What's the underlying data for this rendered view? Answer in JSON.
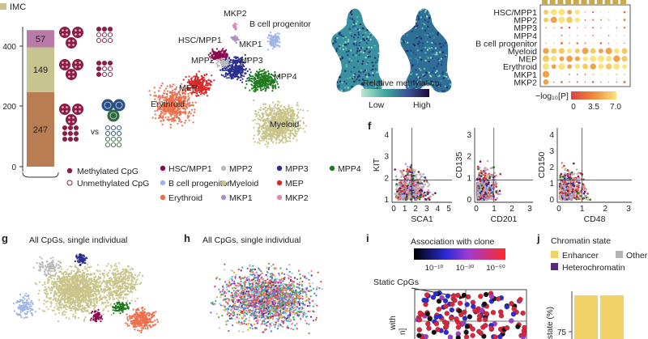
{
  "colors": {
    "hsc": "#8b0a50",
    "mpp2": "#b9b9b9",
    "mpp3": "#2a2f8f",
    "mpp4": "#1d7a1d",
    "bcell": "#9fb4e6",
    "myeloid": "#c8c48a",
    "mep": "#d62b2b",
    "erythroid": "#ef6e4a",
    "mkp1": "#b08ec8",
    "mkp2": "#d98cb4",
    "stack_top": "#b97aa7",
    "stack_mid": "#c6c491",
    "stack_bot": "#b87d52",
    "methylated": "#8b1d47",
    "blue_cluster": "#2a4f86",
    "green_cluster": "#2f6b3a",
    "static_red": "#e0233a",
    "chromatin_enhancer": "#f2d266",
    "chromatin_other": "#b3b3b3",
    "chromatin_hetero": "#5a2a82"
  },
  "panel_a": {
    "title": "IMC",
    "ticks": [
      "0",
      "200",
      "400"
    ],
    "stack_values": [
      247,
      149,
      57
    ],
    "stack_labels": [
      "247",
      "149",
      "57"
    ],
    "vs": "vs",
    "legend_methylated": "Methylated CpG",
    "legend_unmethylated": "Unmethylated CpG"
  },
  "panel_umap": {
    "labels": {
      "mkp2": "MKP2",
      "bcell": "B cell progenitor",
      "hsc": "HSC/MPP1",
      "mkp1": "MKP1",
      "mpp2": "MPP2",
      "mpp3": "MPP3",
      "mep": "MEP",
      "mpp4": "MPP4",
      "erythroid": "Erythroid",
      "myeloid": "Myeloid"
    },
    "legend": [
      {
        "label": "HSC/MPP1",
        "color": "#8b0a50"
      },
      {
        "label": "MPP2",
        "color": "#b9b9b9"
      },
      {
        "label": "MPP3",
        "color": "#2a2f8f"
      },
      {
        "label": "MPP4",
        "color": "#1d7a1d"
      },
      {
        "label": "B cell progenitor",
        "color": "#9fb4e6"
      },
      {
        "label": "Myeloid",
        "color": "#c8c48a"
      },
      {
        "label": "MEP",
        "color": "#d62b2b"
      },
      {
        "label": "Erythroid",
        "color": "#ef6e4a"
      },
      {
        "label": "MKP1",
        "color": "#b08ec8"
      },
      {
        "label": "MKP2",
        "color": "#d98cb4"
      }
    ]
  },
  "panel_meth": {
    "colorbar_title": "Relative methylation",
    "low": "Low",
    "high": "High"
  },
  "panel_dot": {
    "rows": [
      "HSC/MPP1",
      "MPP2",
      "MPP3",
      "MPP4",
      "B cell progenitor",
      "Myeloid",
      "MEP",
      "Erythroid",
      "MKP1",
      "MKP2"
    ],
    "colorbar_title": "−log₁₀[P]",
    "ticks": [
      "0",
      "3.5",
      "7.0"
    ]
  },
  "panel_f": {
    "letter": "f",
    "plots": [
      {
        "ylabel": "KIT",
        "xlabel": "SCA1",
        "xticks": [
          "0",
          "1",
          "2",
          "3",
          "4",
          "5"
        ],
        "yticks": [
          "1",
          "2",
          "3",
          "4"
        ]
      },
      {
        "ylabel": "CD135",
        "xlabel": "CD201",
        "xticks": [
          "0",
          "1",
          "2",
          "3"
        ],
        "yticks": [
          "0",
          "1",
          "2",
          "3"
        ]
      },
      {
        "ylabel": "CD150",
        "xlabel": "CD48",
        "xticks": [
          "0",
          "1",
          "2",
          "3"
        ],
        "yticks": [
          "0",
          "1",
          "2",
          "3",
          "4"
        ]
      }
    ]
  },
  "panel_g": {
    "letter": "g",
    "title": "All CpGs, single individual"
  },
  "panel_h": {
    "letter": "h",
    "title": "All CpGs, single individual"
  },
  "panel_i": {
    "letter": "i",
    "colorbar_title": "Association with clone",
    "ticks": [
      "10⁻¹⁰",
      "10⁻³⁰",
      "10⁻⁵⁰"
    ],
    "static_label": "Static CpGs",
    "ylabel_fragment": "with",
    "ylabel_fragment2": "n]"
  },
  "panel_j": {
    "letter": "j",
    "title": "Chromatin state",
    "legend": [
      {
        "label": "Enhancer",
        "color": "#f2d266"
      },
      {
        "label": "Other",
        "color": "#b3b3b3"
      },
      {
        "label": "Heterochromatin",
        "color": "#5a2a82"
      }
    ],
    "ylabel": "state (%)",
    "tick": "75"
  }
}
